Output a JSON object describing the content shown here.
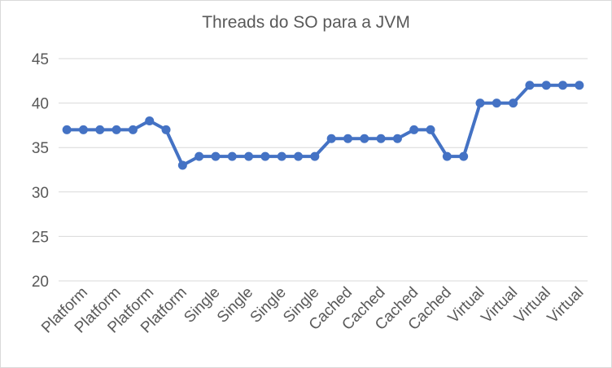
{
  "chart_data": {
    "type": "line",
    "title": "Threads do SO para a JVM",
    "xlabel": "",
    "ylabel": "",
    "ylim": [
      20,
      45
    ],
    "yticks": [
      20,
      25,
      30,
      35,
      40,
      45
    ],
    "grid": true,
    "legend": "none",
    "x_tick_labels": [
      "Platform",
      "Platform",
      "Platform",
      "Platform",
      "Single",
      "Single",
      "Single",
      "Single",
      "Cached",
      "Cached",
      "Cached",
      "Cached",
      "Virtual",
      "Virtual",
      "Virtual",
      "Virtual"
    ],
    "series": [
      {
        "color": "#4472c4",
        "values": [
          37,
          37,
          37,
          37,
          37,
          38,
          37,
          33,
          34,
          34,
          34,
          34,
          34,
          34,
          34,
          34,
          36,
          36,
          36,
          36,
          36,
          37,
          37,
          34,
          34,
          40,
          40,
          40,
          42,
          42,
          42,
          42
        ]
      }
    ]
  }
}
